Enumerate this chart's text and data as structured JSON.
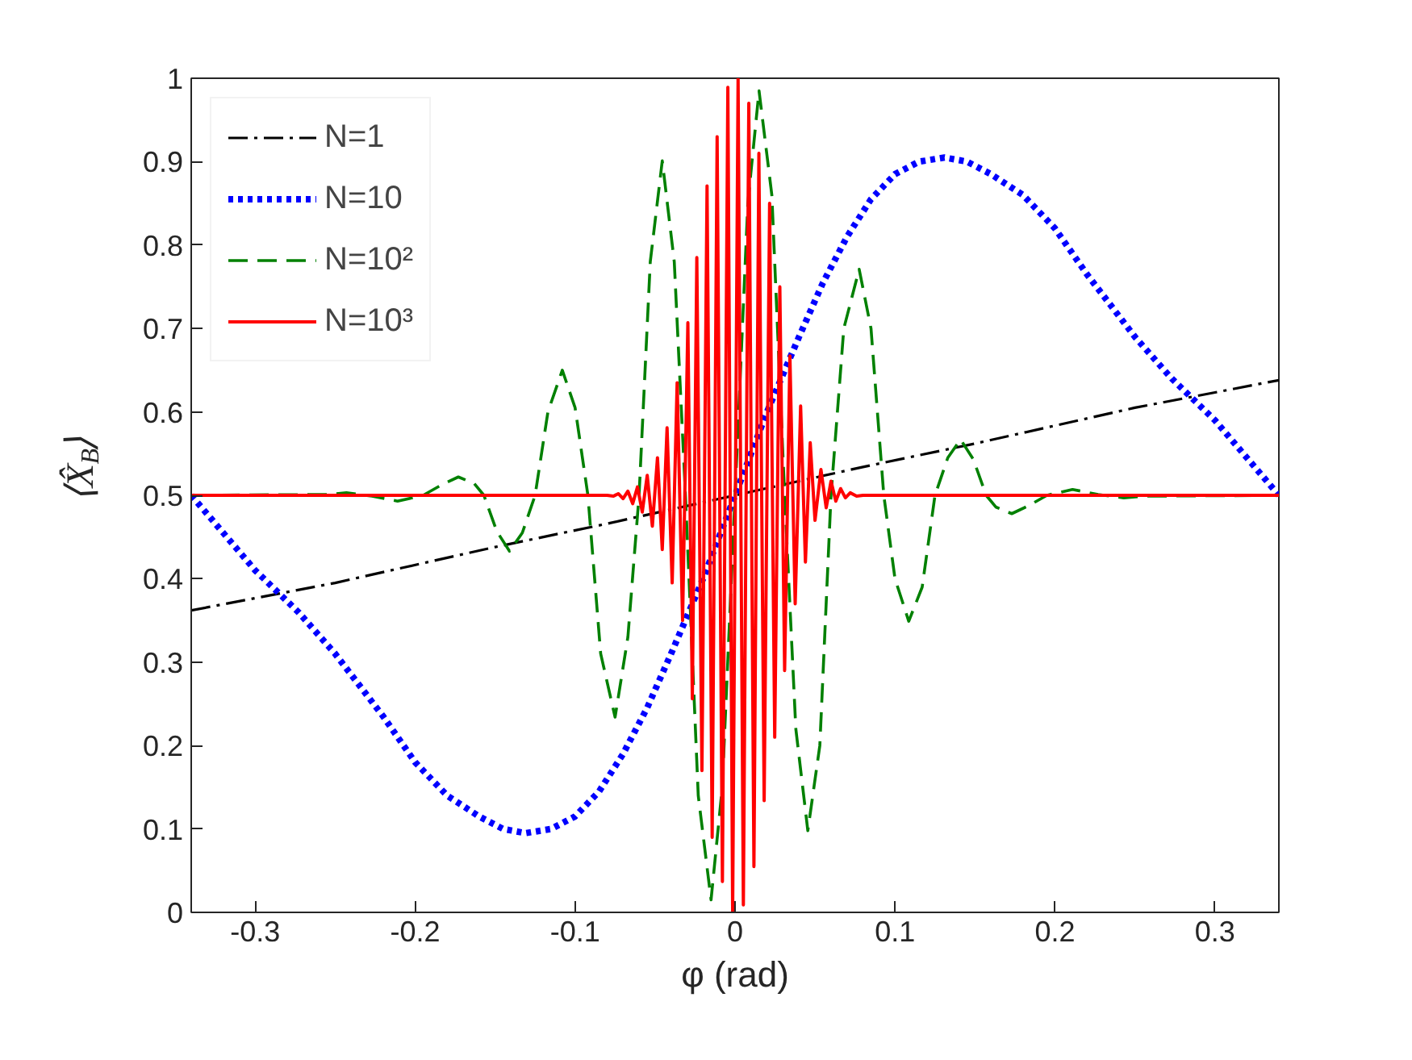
{
  "chart_data": {
    "type": "line",
    "xlabel": "φ (rad)",
    "ylabel": "⟨X̂$_{B}$⟩",
    "xlim": [
      -0.34,
      0.34
    ],
    "ylim": [
      0,
      1
    ],
    "xticks": [
      -0.3,
      -0.2,
      -0.1,
      0,
      0.1,
      0.2,
      0.3
    ],
    "yticks": [
      0,
      0.1,
      0.2,
      0.3,
      0.4,
      0.5,
      0.6,
      0.7,
      0.8,
      0.9,
      1
    ],
    "grid": false,
    "legend": "top left",
    "marker": "none",
    "series": [
      {
        "name": "N=1",
        "color": "#000000",
        "line_style": "dashdot",
        "x": [
          -0.34,
          -0.25,
          -0.15,
          -0.08,
          0,
          0.08,
          0.15,
          0.25,
          0.34
        ],
        "values": [
          0.362,
          0.395,
          0.438,
          0.466,
          0.5,
          0.534,
          0.562,
          0.605,
          0.638
        ]
      },
      {
        "name": "N=10",
        "color": "#0000ff",
        "line_style": "dotted",
        "x": [
          -0.34,
          -0.32,
          -0.3,
          -0.273,
          -0.25,
          -0.22,
          -0.2,
          -0.18,
          -0.16,
          -0.145,
          -0.131,
          -0.115,
          -0.1,
          -0.085,
          -0.07,
          -0.055,
          -0.04,
          -0.02,
          0,
          0.02,
          0.04,
          0.055,
          0.07,
          0.085,
          0.1,
          0.115,
          0.131,
          0.145,
          0.16,
          0.18,
          0.2,
          0.22,
          0.25,
          0.273,
          0.3,
          0.32,
          0.34
        ],
        "values": [
          0.5,
          0.455,
          0.41,
          0.36,
          0.31,
          0.235,
          0.18,
          0.14,
          0.115,
          0.1,
          0.095,
          0.1,
          0.115,
          0.145,
          0.19,
          0.245,
          0.31,
          0.4,
          0.5,
          0.6,
          0.69,
          0.755,
          0.81,
          0.855,
          0.885,
          0.9,
          0.905,
          0.9,
          0.885,
          0.86,
          0.82,
          0.765,
          0.69,
          0.64,
          0.59,
          0.545,
          0.5
        ]
      },
      {
        "name": "N=10²",
        "color": "#008000",
        "line_style": "dashed",
        "x": [
          -0.34,
          -0.255,
          -0.243,
          -0.227,
          -0.211,
          -0.195,
          -0.183,
          -0.173,
          -0.163,
          -0.157,
          -0.149,
          -0.141,
          -0.133,
          -0.125,
          -0.117,
          -0.108,
          -0.1,
          -0.092,
          -0.084,
          -0.075,
          -0.067,
          -0.06,
          -0.053,
          -0.0455,
          -0.038,
          -0.031,
          -0.023,
          -0.015,
          -0.008,
          0,
          0.008,
          0.015,
          0.023,
          0.031,
          0.038,
          0.0455,
          0.053,
          0.06,
          0.068,
          0.0776,
          0.085,
          0.093,
          0.1,
          0.1086,
          0.117,
          0.125,
          0.133,
          0.141,
          0.149,
          0.157,
          0.163,
          0.173,
          0.183,
          0.195,
          0.211,
          0.227,
          0.243,
          0.255,
          0.34
        ],
        "values": [
          0.5,
          0.501,
          0.503,
          0.499,
          0.493,
          0.5,
          0.513,
          0.522,
          0.514,
          0.5,
          0.457,
          0.433,
          0.455,
          0.5,
          0.6,
          0.65,
          0.605,
          0.5,
          0.31,
          0.234,
          0.33,
          0.5,
          0.78,
          0.901,
          0.78,
          0.5,
          0.14,
          0.015,
          0.15,
          0.5,
          0.85,
          0.985,
          0.86,
          0.5,
          0.22,
          0.098,
          0.2,
          0.5,
          0.7,
          0.771,
          0.7,
          0.5,
          0.4,
          0.349,
          0.39,
          0.5,
          0.545,
          0.567,
          0.543,
          0.5,
          0.486,
          0.478,
          0.487,
          0.5,
          0.507,
          0.501,
          0.497,
          0.499,
          0.5
        ]
      },
      {
        "name": "N=10³",
        "color": "#ff0000",
        "line_style": "solid",
        "x": [
          -0.34,
          -0.08,
          -0.076,
          -0.073,
          -0.07,
          -0.067,
          -0.064,
          -0.061,
          -0.058,
          -0.0549,
          -0.0517,
          -0.0485,
          -0.0455,
          -0.0425,
          -0.0393,
          -0.0362,
          -0.0328,
          -0.0295,
          -0.0267,
          -0.0239,
          -0.0207,
          -0.0175,
          -0.0143,
          -0.0112,
          -0.0079,
          -0.0045,
          -0.0015,
          0.0019,
          0.0052,
          0.0086,
          0.0118,
          0.0149,
          0.0182,
          0.0216,
          0.0248,
          0.028,
          0.031,
          0.0343,
          0.0376,
          0.041,
          0.044,
          0.047,
          0.05,
          0.0537,
          0.057,
          0.06,
          0.063,
          0.066,
          0.069,
          0.072,
          0.076,
          0.08,
          0.34
        ],
        "values": [
          0.5,
          0.5,
          0.499,
          0.502,
          0.496,
          0.505,
          0.49,
          0.51,
          0.48,
          0.524,
          0.463,
          0.545,
          0.435,
          0.581,
          0.395,
          0.635,
          0.35,
          0.707,
          0.256,
          0.785,
          0.17,
          0.871,
          0.09,
          0.93,
          0.037,
          0.989,
          0.0,
          1.0,
          0.009,
          0.97,
          0.055,
          0.91,
          0.134,
          0.85,
          0.21,
          0.75,
          0.29,
          0.667,
          0.37,
          0.607,
          0.42,
          0.563,
          0.47,
          0.531,
          0.485,
          0.517,
          0.493,
          0.508,
          0.497,
          0.503,
          0.499,
          0.5,
          0.5
        ]
      }
    ]
  }
}
